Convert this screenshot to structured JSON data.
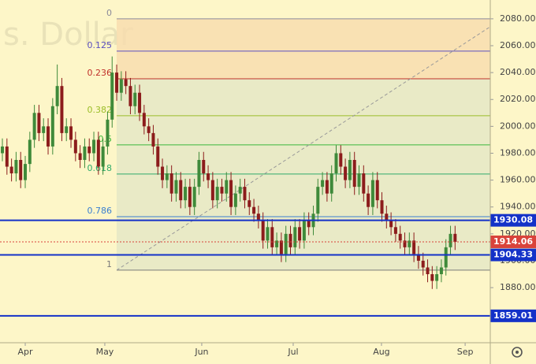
{
  "chart_data": {
    "type": "candlestick",
    "watermark": "s. Dollar",
    "ylim": [
      1839,
      2094
    ],
    "yticks": [
      1880,
      1900,
      1920,
      1940,
      1960,
      1980,
      2000,
      2020,
      2040,
      2060,
      2080
    ],
    "yticks_labels": [
      "1880.00",
      "1900.00",
      "1920.00",
      "1940.00",
      "1960.00",
      "1980.00",
      "2000.00",
      "2020.00",
      "2040.00",
      "2060.00",
      "2080.00"
    ],
    "xlim": [
      -0.52,
      106.7
    ],
    "xticks": [
      {
        "value": 5.0,
        "label": "Apr"
      },
      {
        "value": 22.4,
        "label": "May"
      },
      {
        "value": 43.6,
        "label": "Jun"
      },
      {
        "value": 63.6,
        "label": "Jul"
      },
      {
        "value": 82.9,
        "label": "Aug"
      },
      {
        "value": 101.2,
        "label": "Sep"
      }
    ],
    "up_color": "#3f8a3a",
    "down_color": "#8c1c1c",
    "open": [
      1980,
      1985,
      1970,
      1965,
      1975,
      1960,
      1972,
      1990,
      2010,
      1995,
      2000,
      1985,
      2015,
      2030,
      1995,
      2000,
      1990,
      1980,
      1975,
      1985,
      1980,
      1990,
      1970,
      1985,
      2005,
      2040,
      2025,
      2035,
      2030,
      2015,
      2025,
      2010,
      2000,
      1995,
      1985,
      1970,
      1960,
      1965,
      1950,
      1960,
      1945,
      1955,
      1940,
      1955,
      1975,
      1965,
      1960,
      1945,
      1955,
      1950,
      1960,
      1940,
      1950,
      1955,
      1945,
      1940,
      1935,
      1930,
      1915,
      1925,
      1910,
      1915,
      1905,
      1920,
      1910,
      1925,
      1915,
      1930,
      1925,
      1935,
      1955,
      1960,
      1950,
      1965,
      1980,
      1970,
      1960,
      1975,
      1955,
      1965,
      1950,
      1940,
      1960,
      1945,
      1935,
      1930,
      1925,
      1920,
      1915,
      1910,
      1915,
      1905,
      1900,
      1895,
      1890,
      1885,
      1890,
      1895,
      1910,
      1920
    ],
    "high": [
      1991,
      1991,
      1976,
      1981,
      1981,
      1978,
      1996,
      2016,
      2016,
      2006,
      2006,
      2021,
      2046,
      2036,
      2006,
      2006,
      1996,
      1986,
      1991,
      1991,
      1996,
      1996,
      1991,
      2011,
      2052,
      2046,
      2041,
      2041,
      2036,
      2031,
      2031,
      2016,
      2006,
      2001,
      1991,
      1976,
      1971,
      1971,
      1966,
      1966,
      1961,
      1961,
      1961,
      1981,
      1981,
      1971,
      1966,
      1961,
      1961,
      1966,
      1966,
      1956,
      1961,
      1961,
      1951,
      1946,
      1941,
      1936,
      1931,
      1931,
      1921,
      1921,
      1926,
      1926,
      1931,
      1931,
      1936,
      1936,
      1941,
      1961,
      1966,
      1966,
      1971,
      1986,
      1986,
      1976,
      1981,
      1981,
      1971,
      1971,
      1956,
      1966,
      1966,
      1951,
      1941,
      1936,
      1931,
      1926,
      1921,
      1921,
      1921,
      1911,
      1906,
      1901,
      1896,
      1896,
      1901,
      1916,
      1926,
      1926
    ],
    "low": [
      1974,
      1964,
      1959,
      1959,
      1954,
      1954,
      1966,
      1984,
      1989,
      1989,
      1979,
      1979,
      2009,
      1989,
      1989,
      1984,
      1974,
      1969,
      1969,
      1974,
      1974,
      1964,
      1964,
      1979,
      1999,
      2019,
      2019,
      2024,
      2009,
      2009,
      2004,
      1994,
      1989,
      1979,
      1964,
      1954,
      1954,
      1944,
      1944,
      1939,
      1939,
      1934,
      1934,
      1949,
      1959,
      1954,
      1939,
      1939,
      1944,
      1944,
      1934,
      1934,
      1944,
      1939,
      1934,
      1929,
      1924,
      1909,
      1909,
      1904,
      1904,
      1899,
      1899,
      1904,
      1904,
      1909,
      1909,
      1919,
      1919,
      1929,
      1949,
      1944,
      1944,
      1959,
      1964,
      1954,
      1954,
      1949,
      1949,
      1944,
      1934,
      1934,
      1939,
      1929,
      1924,
      1919,
      1914,
      1909,
      1904,
      1904,
      1899,
      1894,
      1889,
      1884,
      1879,
      1879,
      1884,
      1889,
      1904,
      1908
    ],
    "close": [
      1985,
      1970,
      1965,
      1975,
      1960,
      1972,
      1990,
      2010,
      1995,
      2000,
      1985,
      2015,
      2030,
      1995,
      2000,
      1990,
      1980,
      1975,
      1985,
      1980,
      1990,
      1970,
      1985,
      2005,
      2040,
      2025,
      2035,
      2030,
      2015,
      2025,
      2010,
      2000,
      1995,
      1985,
      1970,
      1960,
      1965,
      1950,
      1960,
      1945,
      1955,
      1940,
      1955,
      1975,
      1965,
      1960,
      1945,
      1955,
      1950,
      1960,
      1940,
      1950,
      1955,
      1945,
      1940,
      1935,
      1930,
      1915,
      1925,
      1910,
      1915,
      1905,
      1920,
      1910,
      1925,
      1915,
      1930,
      1925,
      1935,
      1955,
      1960,
      1950,
      1965,
      1980,
      1970,
      1960,
      1975,
      1955,
      1965,
      1950,
      1940,
      1960,
      1945,
      1935,
      1930,
      1925,
      1920,
      1915,
      1910,
      1915,
      1905,
      1900,
      1895,
      1890,
      1885,
      1890,
      1895,
      1910,
      1920,
      1914
    ],
    "fib_levels": [
      {
        "ratio": 0,
        "price": 2080,
        "color": "#8a8a9a"
      },
      {
        "ratio": 0.125,
        "price": 2056,
        "color": "#5a4fc0"
      },
      {
        "ratio": 0.236,
        "price": 2035.4,
        "color": "#c0302a"
      },
      {
        "ratio": 0.382,
        "price": 2007.9,
        "color": "#9bbd28"
      },
      {
        "ratio": 0.5,
        "price": 1986.2,
        "color": "#3cb83c"
      },
      {
        "ratio": 0.618,
        "price": 1964.5,
        "color": "#2eaa6a"
      },
      {
        "ratio": 0.786,
        "price": 1932.8,
        "color": "#3a7fd0"
      },
      {
        "ratio": 1,
        "price": 1893,
        "color": "#7a7a7a"
      }
    ],
    "levels": [
      {
        "value": 1930.08,
        "label": "1930.08"
      },
      {
        "value": 1904.33,
        "label": "1904.33"
      },
      {
        "value": 1859.01,
        "label": "1859.01"
      }
    ],
    "level_color": "#1432c8",
    "last_price": {
      "value": 1914.06,
      "label": "1914.06",
      "color": "#d9433b"
    }
  }
}
